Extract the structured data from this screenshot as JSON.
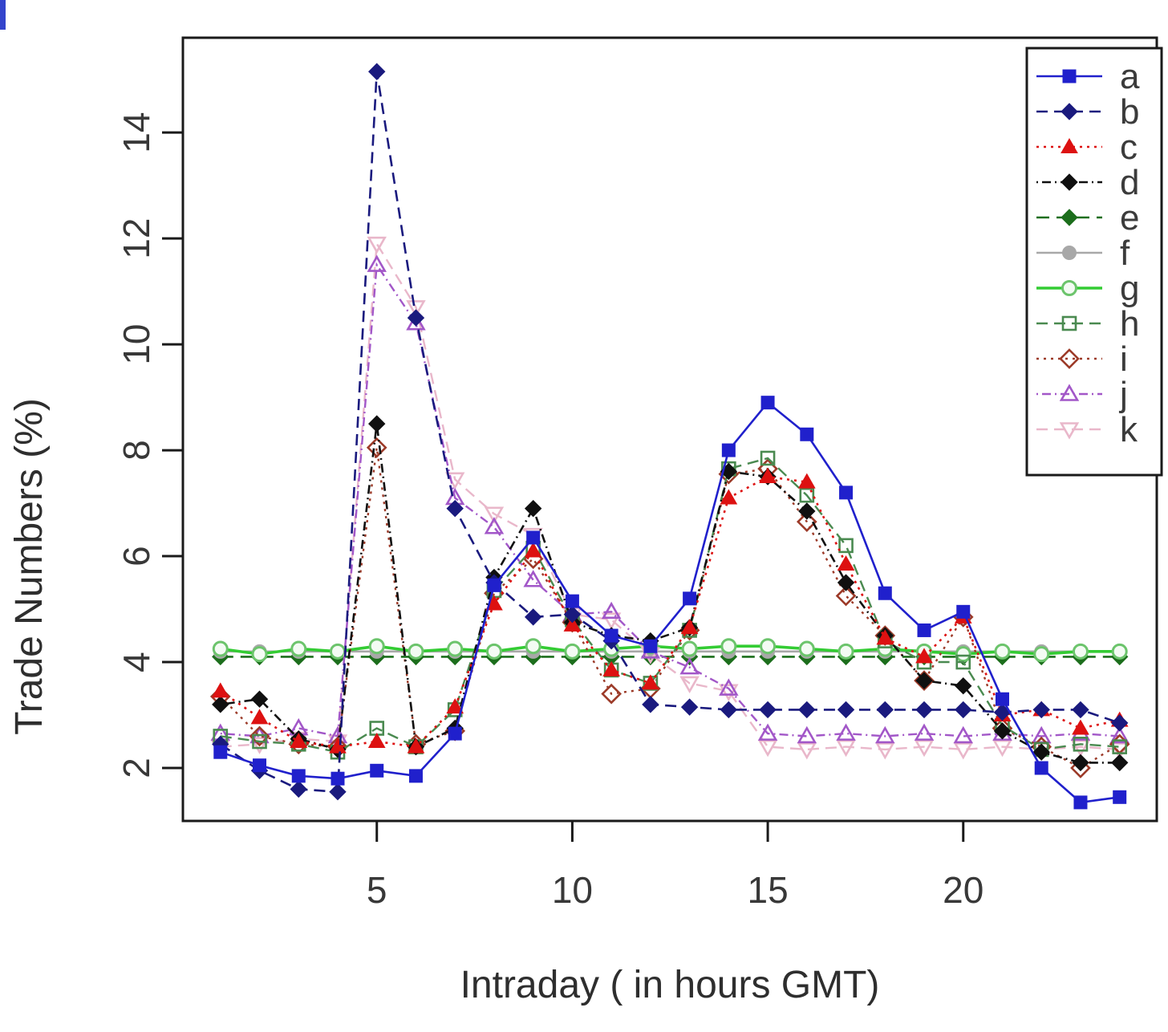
{
  "chart_data": {
    "type": "line",
    "title": "",
    "xlabel": "Intraday ( in hours GMT)",
    "ylabel": "Trade Numbers (%)",
    "x": [
      1,
      2,
      3,
      4,
      5,
      6,
      7,
      8,
      9,
      10,
      11,
      12,
      13,
      14,
      15,
      16,
      17,
      18,
      19,
      20,
      21,
      22,
      23,
      24
    ],
    "xlim": [
      0.04,
      24.95
    ],
    "ylim": [
      1.0,
      15.79
    ],
    "xticks": [
      5,
      10,
      15,
      20
    ],
    "yticks": [
      2,
      4,
      6,
      8,
      10,
      12,
      14
    ],
    "grid": false,
    "legend_position": "top-right",
    "axis_color": "#1a1a1a",
    "series": [
      {
        "name": "a",
        "color": "#2020cc",
        "marker": "square",
        "fill": "filled",
        "line": "solid",
        "width": 2.6,
        "values": [
          2.3,
          2.05,
          1.85,
          1.8,
          1.95,
          1.85,
          2.65,
          5.45,
          6.35,
          5.15,
          4.5,
          4.3,
          5.2,
          8.0,
          8.9,
          8.3,
          7.2,
          5.3,
          4.6,
          4.95,
          3.3,
          2.0,
          1.35,
          1.45
        ]
      },
      {
        "name": "b",
        "color": "#1a1a7e",
        "marker": "diamond",
        "fill": "filled",
        "line": "dashed",
        "width": 2.6,
        "values": [
          2.45,
          1.95,
          1.6,
          1.55,
          15.15,
          10.5,
          6.9,
          5.5,
          4.85,
          4.9,
          4.4,
          3.2,
          3.15,
          3.1,
          3.1,
          3.1,
          3.1,
          3.1,
          3.1,
          3.1,
          3.05,
          3.1,
          3.1,
          2.85
        ]
      },
      {
        "name": "c",
        "color": "#dd1111",
        "marker": "triangle-up",
        "fill": "filled",
        "line": "dotted",
        "width": 2.6,
        "values": [
          3.45,
          2.95,
          2.5,
          2.4,
          2.5,
          2.4,
          3.15,
          5.1,
          6.1,
          4.7,
          3.85,
          3.6,
          4.65,
          7.1,
          7.5,
          7.4,
          5.85,
          4.45,
          4.1,
          4.85,
          3.0,
          3.1,
          2.75,
          2.9
        ]
      },
      {
        "name": "d",
        "color": "#101010",
        "marker": "diamond",
        "fill": "filled",
        "line": "dashdot",
        "width": 2.6,
        "values": [
          3.2,
          3.3,
          2.55,
          2.35,
          8.5,
          2.4,
          2.75,
          5.6,
          6.9,
          4.75,
          4.5,
          4.4,
          4.65,
          7.6,
          7.5,
          6.85,
          5.5,
          4.5,
          3.65,
          3.55,
          2.7,
          2.3,
          2.1,
          2.1
        ]
      },
      {
        "name": "e",
        "color": "#1c6e1c",
        "marker": "diamond",
        "fill": "filled",
        "line": "longdash",
        "width": 2.6,
        "values": [
          4.1,
          4.1,
          4.1,
          4.1,
          4.1,
          4.1,
          4.1,
          4.1,
          4.1,
          4.1,
          4.1,
          4.1,
          4.1,
          4.1,
          4.1,
          4.1,
          4.1,
          4.1,
          4.1,
          4.1,
          4.1,
          4.1,
          4.1,
          4.1
        ]
      },
      {
        "name": "f",
        "color": "#a8a8a8",
        "marker": "circle",
        "fill": "filled",
        "line": "solid",
        "width": 2.6,
        "values": [
          4.2,
          4.2,
          4.2,
          4.2,
          4.2,
          4.2,
          4.2,
          4.2,
          4.2,
          4.2,
          4.2,
          4.2,
          4.2,
          4.2,
          4.2,
          4.2,
          4.2,
          4.2,
          4.2,
          4.2,
          4.2,
          4.2,
          4.2,
          4.2
        ]
      },
      {
        "name": "g",
        "color": "#33cc33",
        "marker": "circle-open",
        "fill": "open",
        "line": "solid",
        "width": 3.6,
        "values": [
          4.25,
          4.15,
          4.25,
          4.2,
          4.3,
          4.2,
          4.25,
          4.2,
          4.3,
          4.2,
          4.25,
          4.3,
          4.25,
          4.3,
          4.3,
          4.25,
          4.2,
          4.25,
          4.2,
          4.15,
          4.2,
          4.15,
          4.2,
          4.2
        ]
      },
      {
        "name": "h",
        "color": "#4a8a50",
        "marker": "square-open",
        "fill": "open",
        "line": "dashed",
        "width": 2.4,
        "values": [
          2.6,
          2.5,
          2.45,
          2.3,
          2.75,
          2.4,
          3.1,
          5.35,
          6.15,
          4.8,
          3.85,
          3.6,
          4.6,
          7.65,
          7.85,
          7.15,
          6.2,
          4.4,
          4.0,
          4.0,
          2.8,
          2.35,
          2.45,
          2.4
        ]
      },
      {
        "name": "i",
        "color": "#9c3a28",
        "marker": "diamond-open",
        "fill": "open",
        "line": "dotted",
        "width": 2.4,
        "values": [
          3.35,
          2.6,
          2.45,
          2.4,
          8.05,
          2.45,
          2.7,
          5.3,
          5.95,
          4.75,
          3.4,
          3.5,
          4.6,
          7.55,
          7.65,
          6.65,
          5.25,
          4.5,
          3.65,
          4.85,
          2.75,
          2.4,
          2.0,
          2.45
        ]
      },
      {
        "name": "j",
        "color": "#a257c8",
        "marker": "triangle-up-open",
        "fill": "open",
        "line": "dashdot",
        "width": 2.4,
        "values": [
          2.65,
          2.6,
          2.75,
          2.6,
          11.5,
          10.4,
          7.1,
          6.55,
          5.55,
          4.9,
          4.95,
          4.2,
          3.9,
          3.5,
          2.65,
          2.6,
          2.65,
          2.6,
          2.65,
          2.6,
          2.65,
          2.6,
          2.65,
          2.6
        ]
      },
      {
        "name": "k",
        "color": "#e9b7ca",
        "marker": "triangle-down-open",
        "fill": "open",
        "line": "dashed",
        "width": 2.4,
        "values": [
          2.4,
          2.45,
          2.55,
          2.5,
          11.9,
          10.7,
          7.45,
          6.8,
          6.4,
          4.9,
          4.8,
          4.15,
          3.6,
          3.45,
          2.4,
          2.35,
          2.4,
          2.35,
          2.4,
          2.35,
          2.4,
          2.35,
          2.4,
          2.35
        ]
      }
    ],
    "legend_labels": [
      "a",
      "b",
      "c",
      "d",
      "e",
      "f",
      "g",
      "h",
      "i",
      "j",
      "k"
    ]
  }
}
